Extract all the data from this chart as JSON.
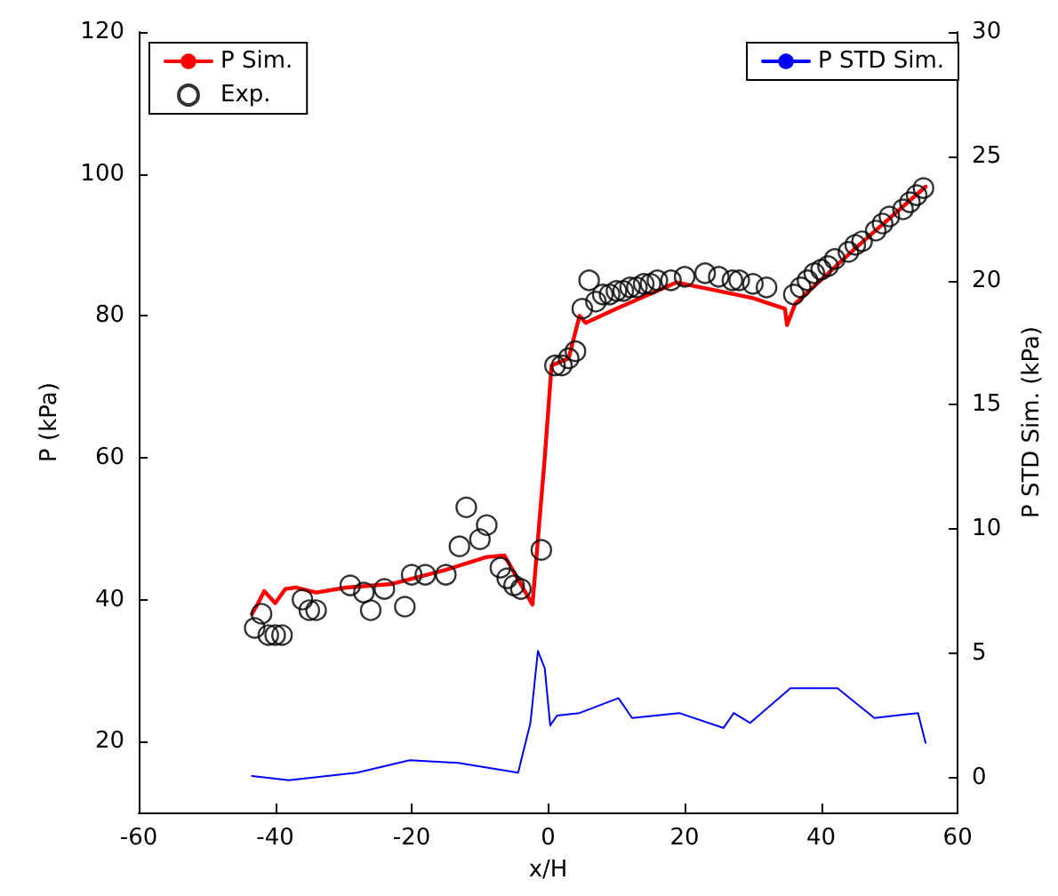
{
  "chart_data": {
    "type": "line",
    "xlabel": "x/H",
    "ylabel": "P (kPa)",
    "y2label": "P STD Sim. (kPa)",
    "xlim": [
      -60,
      60
    ],
    "xticks": [
      -60,
      -40,
      -20,
      0,
      20,
      40,
      60
    ],
    "ylim": [
      10,
      120
    ],
    "yticks": [
      20,
      40,
      60,
      80,
      100,
      120
    ],
    "y2lim": [
      -1.4,
      30
    ],
    "y2ticks": [
      0,
      5,
      10,
      15,
      20,
      25,
      30
    ],
    "grid": false,
    "legend": "top",
    "series": [
      {
        "name": "P Sim.",
        "color": "#ff0000",
        "marker": "none",
        "x": [
          -43.4,
          -42.5,
          -41.6,
          -40,
          -38.5,
          -37,
          -34,
          -29.6,
          -22.9,
          -15,
          -9,
          -6.4,
          -2.3,
          -0.5,
          0.5,
          3,
          4.6,
          5.5,
          10,
          18.8,
          25,
          30,
          34.7,
          35,
          36.2,
          45,
          55.3
        ],
        "values": [
          38,
          39.5,
          41.2,
          39.5,
          41.5,
          41.7,
          41,
          41.7,
          42.2,
          44.2,
          46,
          46.2,
          39.3,
          60,
          73,
          74,
          80,
          79,
          81,
          84.7,
          83.5,
          82.5,
          81,
          78.7,
          81.7,
          89.5,
          98.2
        ]
      },
      {
        "name": "Exp.",
        "type": "scatter",
        "color": "#000000",
        "marker": "circle",
        "x": [
          -43,
          -42,
          -41,
          -40,
          -39,
          -36,
          -35,
          -34,
          -29,
          -27,
          -26,
          -24,
          -21,
          -20,
          -18,
          -15,
          -13,
          -12,
          -10,
          -9,
          -7,
          -6,
          -5,
          -4,
          -1,
          1,
          2,
          3,
          4,
          5,
          6,
          7,
          8,
          9,
          10,
          11,
          12,
          13,
          14,
          15,
          16,
          18,
          20,
          23,
          25,
          27,
          28,
          30,
          32,
          36,
          37,
          38,
          39,
          40,
          41,
          42,
          44,
          45,
          46,
          48,
          49,
          50,
          52,
          53,
          54,
          55
        ],
        "values": [
          36,
          38,
          35,
          35,
          35,
          40,
          38.5,
          38.5,
          42,
          41,
          38.5,
          41.5,
          39,
          43.5,
          43.5,
          43.5,
          47.5,
          53,
          48.5,
          50.5,
          44.5,
          43,
          42,
          41.5,
          47,
          73,
          73,
          74,
          75,
          81,
          85,
          82,
          83,
          83,
          83.5,
          83.5,
          84,
          84,
          84.5,
          84.5,
          85,
          85,
          85.5,
          86,
          85.5,
          85,
          85,
          84.5,
          84,
          83,
          84,
          85,
          86,
          86.5,
          87,
          88,
          89,
          90,
          90.5,
          92,
          93,
          94,
          95,
          96,
          97,
          98
        ]
      },
      {
        "name": "P STD Sim.",
        "axis": "y2",
        "color": "#0000ff",
        "marker": "none",
        "x": [
          -43.4,
          -38,
          -28,
          -20.3,
          -13.4,
          -4.4,
          -2.6,
          -1.5,
          -0.5,
          0.3,
          1.3,
          4.6,
          10.3,
          12.3,
          19.2,
          25.7,
          27.2,
          29.6,
          35.5,
          42.4,
          47.8,
          54.2,
          55.3
        ],
        "values": [
          0.07,
          -0.1,
          0.2,
          0.7,
          0.6,
          0.2,
          2.2,
          5.1,
          4.4,
          2.1,
          2.5,
          2.6,
          3.2,
          2.4,
          2.6,
          2.0,
          2.6,
          2.2,
          3.6,
          3.6,
          2.4,
          2.6,
          1.4
        ]
      }
    ]
  }
}
